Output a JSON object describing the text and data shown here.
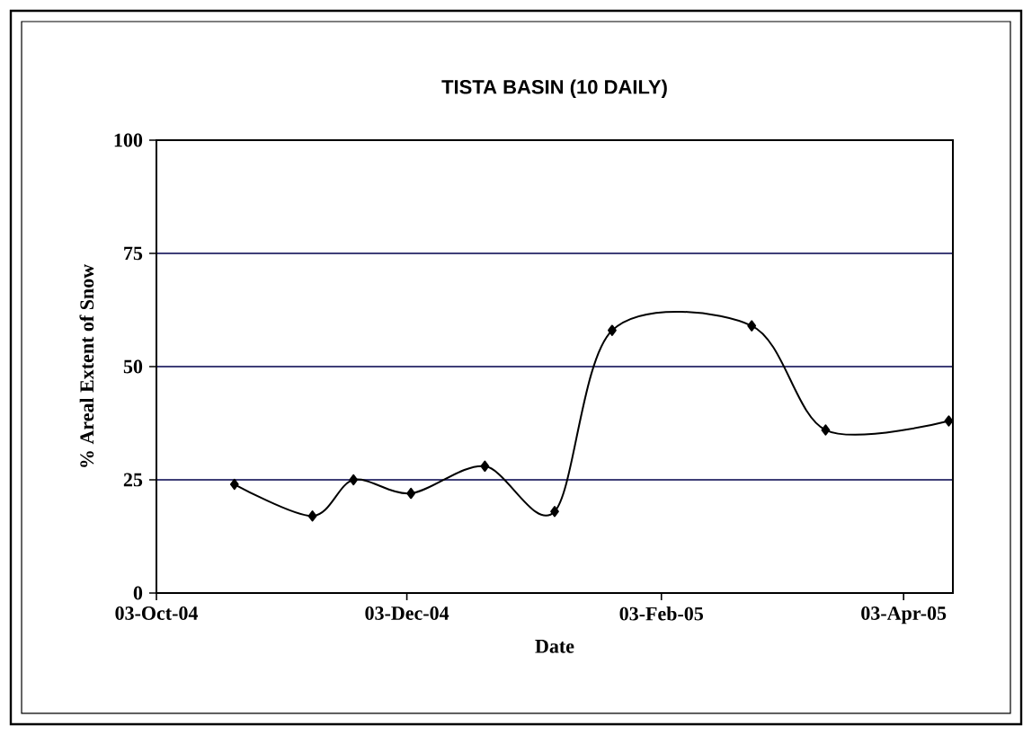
{
  "chart_data": {
    "type": "line",
    "title": "TISTA BASIN (10 DAILY)",
    "xlabel": "Date",
    "ylabel": "% Areal Extent of Snow",
    "x": [
      "2004-10-22",
      "2004-11-10",
      "2004-11-20",
      "2004-12-04",
      "2004-12-22",
      "2005-01-08",
      "2005-01-22",
      "2005-02-25",
      "2005-03-15",
      "2005-04-14"
    ],
    "series": [
      {
        "color": "#000000",
        "values": [
          24,
          17,
          25,
          22,
          28,
          18,
          58,
          59,
          36,
          38
        ]
      }
    ],
    "xlim": [
      "2004-10-03",
      "2005-04-15"
    ],
    "xticks": [
      {
        "value": "2004-10-03",
        "label": "03-Oct-04"
      },
      {
        "value": "2004-12-03",
        "label": "03-Dec-04"
      },
      {
        "value": "2005-02-03",
        "label": "03-Feb-05"
      },
      {
        "value": "2005-04-03",
        "label": "03-Apr-05"
      }
    ],
    "ylim": [
      0,
      100
    ],
    "yticks": [
      0,
      25,
      50,
      75,
      100
    ],
    "grid": "y",
    "marker": "diamond",
    "line_style": "solid"
  }
}
